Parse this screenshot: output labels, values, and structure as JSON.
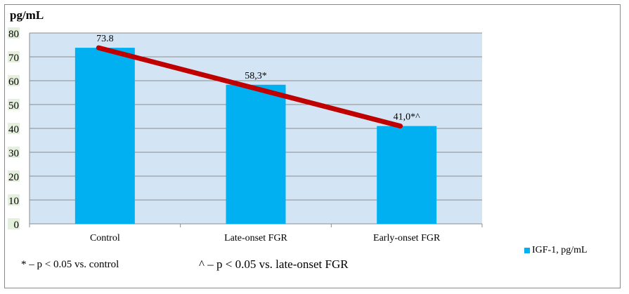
{
  "chart_data": {
    "type": "bar",
    "title": "",
    "ylabel": "pg/mL",
    "xlabel": "",
    "categories": [
      "Control",
      "Late-onset FGR",
      "Early-onset FGR"
    ],
    "series": [
      {
        "name": "IGF-1, pg/mL",
        "values": [
          73.8,
          58.3,
          41.0
        ],
        "color": "#00b0f0"
      }
    ],
    "data_labels": [
      "73.8",
      "58,3*",
      "41,0*^"
    ],
    "trend_line": {
      "values": [
        73.8,
        41.0
      ],
      "color": "#c00000"
    },
    "ylim": [
      0,
      80
    ],
    "yticks": [
      0,
      10,
      20,
      30,
      40,
      50,
      60,
      70,
      80
    ],
    "grid": true,
    "plot_background": "#d3e5f4",
    "legend_position": "bottom-right",
    "footnotes": [
      "* – p < 0.05 vs. control",
      "^ – p < 0.05 vs. late-onset FGR"
    ]
  }
}
